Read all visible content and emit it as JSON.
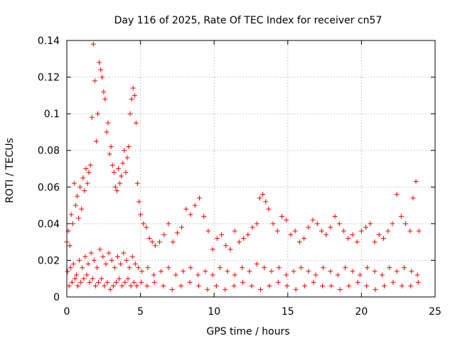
{
  "chart_data": {
    "type": "scatter",
    "title": "Day 116 of 2025, Rate Of TEC Index for receiver cn57",
    "xlabel": "GPS time / hours",
    "ylabel": "ROTI / TECUs",
    "xlim": [
      0,
      25
    ],
    "ylim": [
      0,
      0.14
    ],
    "xticks": [
      "0",
      "5",
      "10",
      "15",
      "20",
      "25"
    ],
    "yticks": [
      "0",
      "0.02",
      "0.04",
      "0.06",
      "0.08",
      "0.1",
      "0.12",
      "0.14"
    ],
    "grid": true,
    "marker": "plus",
    "color": "#ff0000",
    "series": [
      {
        "x": [
          0.0,
          0.1,
          0.2,
          0.3,
          0.4,
          0.5,
          0.6,
          0.7,
          0.8,
          0.9,
          1.0,
          1.1,
          1.2,
          1.3,
          1.4,
          1.5,
          1.6,
          1.7,
          1.8,
          1.9,
          2.0,
          2.1,
          2.2,
          2.3,
          2.4,
          2.5,
          2.6,
          2.7,
          2.8,
          2.9,
          3.0,
          3.1,
          3.2,
          3.3,
          3.4,
          3.5,
          3.6,
          3.7,
          3.8,
          3.9,
          4.0,
          4.1,
          4.2,
          4.3,
          4.4,
          4.5,
          4.6,
          4.7,
          4.8,
          4.9,
          5.0,
          5.2,
          5.4,
          5.6,
          5.8,
          6.0,
          6.3,
          6.6,
          6.9,
          7.2,
          7.5,
          7.8,
          8.1,
          8.4,
          8.7,
          9.0,
          9.3,
          9.6,
          9.9,
          10.2,
          10.5,
          10.8,
          11.1,
          11.4,
          11.7,
          12.0,
          12.3,
          12.6,
          12.9,
          13.1,
          13.3,
          13.5,
          13.7,
          14.0,
          14.3,
          14.6,
          14.9,
          15.2,
          15.5,
          15.8,
          16.1,
          16.4,
          16.7,
          17.0,
          17.3,
          17.6,
          17.9,
          18.2,
          18.5,
          18.8,
          19.1,
          19.4,
          19.7,
          20.0,
          20.3,
          20.6,
          20.9,
          21.2,
          21.5,
          21.8,
          22.1,
          22.4,
          22.7,
          23.0,
          23.3,
          23.5,
          23.7,
          23.9
        ],
        "y": [
          0.03,
          0.036,
          0.028,
          0.045,
          0.04,
          0.062,
          0.05,
          0.055,
          0.043,
          0.06,
          0.048,
          0.065,
          0.058,
          0.07,
          0.062,
          0.068,
          0.072,
          0.098,
          0.138,
          0.118,
          0.085,
          0.1,
          0.128,
          0.124,
          0.12,
          0.112,
          0.108,
          0.09,
          0.095,
          0.078,
          0.082,
          0.072,
          0.068,
          0.06,
          0.058,
          0.07,
          0.062,
          0.066,
          0.073,
          0.08,
          0.068,
          0.076,
          0.082,
          0.1,
          0.108,
          0.114,
          0.11,
          0.095,
          0.062,
          0.052,
          0.045,
          0.04,
          0.038,
          0.032,
          0.03,
          0.028,
          0.03,
          0.034,
          0.04,
          0.03,
          0.035,
          0.038,
          0.048,
          0.045,
          0.05,
          0.054,
          0.044,
          0.036,
          0.026,
          0.032,
          0.034,
          0.028,
          0.026,
          0.036,
          0.03,
          0.032,
          0.034,
          0.038,
          0.04,
          0.054,
          0.056,
          0.052,
          0.048,
          0.04,
          0.036,
          0.044,
          0.042,
          0.034,
          0.036,
          0.03,
          0.032,
          0.038,
          0.042,
          0.04,
          0.036,
          0.034,
          0.038,
          0.044,
          0.04,
          0.036,
          0.032,
          0.034,
          0.03,
          0.036,
          0.038,
          0.04,
          0.03,
          0.034,
          0.032,
          0.036,
          0.04,
          0.056,
          0.044,
          0.04,
          0.036,
          0.054,
          0.063,
          0.036
        ]
      },
      {
        "x": [
          0.05,
          0.25,
          0.45,
          0.65,
          0.85,
          1.05,
          1.25,
          1.45,
          1.65,
          1.85,
          2.05,
          2.25,
          2.45,
          2.65,
          2.85,
          3.05,
          3.25,
          3.45,
          3.65,
          3.85,
          4.05,
          4.25,
          4.45,
          4.65,
          4.85,
          5.1,
          5.5,
          5.9,
          6.4,
          6.9,
          7.4,
          7.9,
          8.4,
          8.9,
          9.4,
          9.9,
          10.4,
          10.9,
          11.4,
          11.9,
          12.4,
          12.9,
          13.4,
          13.9,
          14.4,
          14.9,
          15.4,
          15.9,
          16.4,
          16.9,
          17.4,
          17.9,
          18.4,
          18.9,
          19.4,
          19.9,
          20.4,
          20.9,
          21.4,
          21.9,
          22.4,
          22.9,
          23.4,
          23.8
        ],
        "y": [
          0.014,
          0.016,
          0.018,
          0.012,
          0.02,
          0.016,
          0.022,
          0.018,
          0.024,
          0.02,
          0.016,
          0.026,
          0.022,
          0.018,
          0.024,
          0.02,
          0.016,
          0.022,
          0.018,
          0.024,
          0.02,
          0.016,
          0.022,
          0.018,
          0.016,
          0.014,
          0.016,
          0.012,
          0.014,
          0.016,
          0.012,
          0.014,
          0.016,
          0.012,
          0.014,
          0.012,
          0.016,
          0.014,
          0.012,
          0.016,
          0.014,
          0.018,
          0.016,
          0.014,
          0.016,
          0.012,
          0.014,
          0.016,
          0.014,
          0.012,
          0.016,
          0.014,
          0.012,
          0.016,
          0.014,
          0.012,
          0.016,
          0.014,
          0.012,
          0.016,
          0.014,
          0.016,
          0.014,
          0.012
        ]
      },
      {
        "x": [
          0.15,
          0.35,
          0.55,
          0.75,
          0.95,
          1.15,
          1.35,
          1.55,
          1.75,
          1.95,
          2.15,
          2.35,
          2.55,
          2.75,
          2.95,
          3.15,
          3.35,
          3.55,
          3.75,
          3.95,
          4.15,
          4.35,
          4.55,
          4.75,
          5.05,
          5.45,
          5.95,
          6.55,
          7.15,
          7.75,
          8.35,
          8.95,
          9.55,
          10.15,
          10.75,
          11.35,
          11.95,
          12.55,
          13.15,
          13.75,
          14.35,
          14.95,
          15.55,
          16.15,
          16.75,
          17.35,
          17.95,
          18.55,
          19.15,
          19.75,
          20.35,
          20.95,
          21.55,
          22.15,
          22.75,
          23.35,
          23.85
        ],
        "y": [
          0.006,
          0.008,
          0.01,
          0.006,
          0.008,
          0.01,
          0.012,
          0.008,
          0.01,
          0.006,
          0.008,
          0.01,
          0.006,
          0.008,
          0.004,
          0.006,
          0.008,
          0.01,
          0.006,
          0.008,
          0.01,
          0.006,
          0.008,
          0.006,
          0.008,
          0.006,
          0.008,
          0.006,
          0.004,
          0.006,
          0.008,
          0.006,
          0.004,
          0.006,
          0.004,
          0.006,
          0.008,
          0.006,
          0.004,
          0.006,
          0.008,
          0.006,
          0.004,
          0.006,
          0.008,
          0.006,
          0.006,
          0.004,
          0.006,
          0.008,
          0.006,
          0.004,
          0.006,
          0.008,
          0.006,
          0.006,
          0.008
        ]
      }
    ]
  }
}
